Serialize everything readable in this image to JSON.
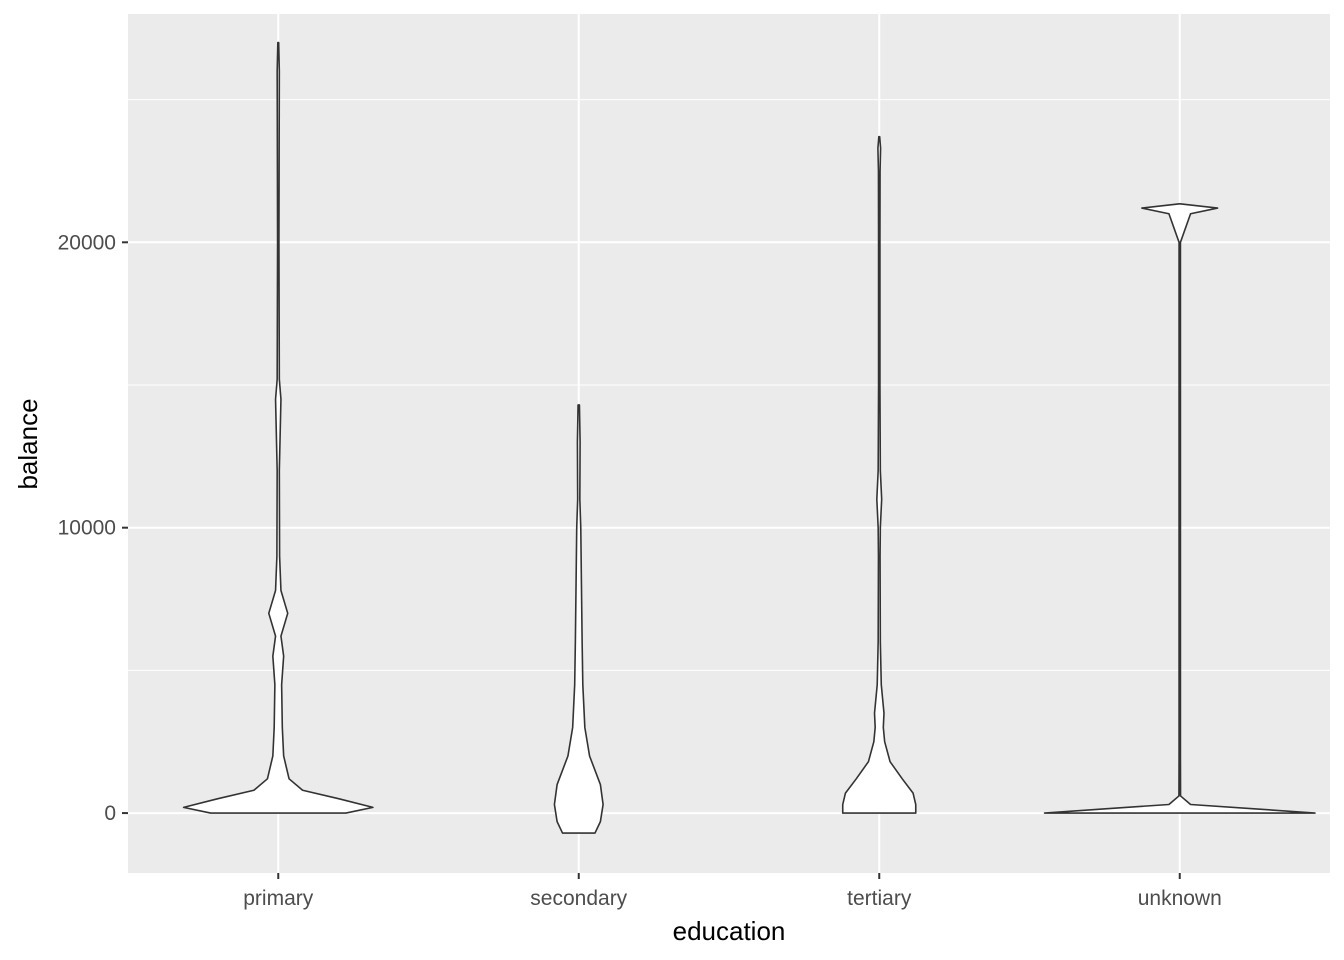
{
  "chart_data": {
    "type": "violin",
    "xlabel": "education",
    "ylabel": "balance",
    "categories": [
      "primary",
      "secondary",
      "tertiary",
      "unknown"
    ],
    "ylim": [
      -2100,
      28000
    ],
    "y_ticks": [
      0,
      10000,
      20000
    ],
    "y_tick_labels": [
      "0",
      "10000",
      "20000"
    ],
    "grid": true,
    "colors": {
      "panel": "#ebebeb",
      "grid": "#ffffff",
      "violin_fill": "#ffffff",
      "violin_stroke": "#333333"
    },
    "violins": [
      {
        "category": "primary",
        "profile": [
          [
            0,
            0.5
          ],
          [
            200,
            0.7
          ],
          [
            500,
            0.45
          ],
          [
            800,
            0.18
          ],
          [
            1200,
            0.08
          ],
          [
            2000,
            0.04
          ],
          [
            3000,
            0.03
          ],
          [
            4500,
            0.025
          ],
          [
            5500,
            0.04
          ],
          [
            6200,
            0.02
          ],
          [
            7000,
            0.07
          ],
          [
            7800,
            0.02
          ],
          [
            9000,
            0.01
          ],
          [
            12000,
            0.008
          ],
          [
            14500,
            0.02
          ],
          [
            15200,
            0.008
          ],
          [
            20000,
            0.005
          ],
          [
            26000,
            0.008
          ],
          [
            27000,
            0.003
          ]
        ]
      },
      {
        "category": "secondary",
        "profile": [
          [
            -700,
            0.12
          ],
          [
            -300,
            0.16
          ],
          [
            300,
            0.18
          ],
          [
            1000,
            0.16
          ],
          [
            2000,
            0.08
          ],
          [
            3000,
            0.045
          ],
          [
            4500,
            0.03
          ],
          [
            6000,
            0.025
          ],
          [
            8000,
            0.02
          ],
          [
            10000,
            0.015
          ],
          [
            11000,
            0.008
          ],
          [
            13000,
            0.01
          ],
          [
            14300,
            0.005
          ]
        ]
      },
      {
        "category": "tertiary",
        "profile": [
          [
            0,
            0.27
          ],
          [
            300,
            0.27
          ],
          [
            700,
            0.25
          ],
          [
            1200,
            0.17
          ],
          [
            1800,
            0.08
          ],
          [
            2500,
            0.04
          ],
          [
            3000,
            0.03
          ],
          [
            3500,
            0.035
          ],
          [
            4500,
            0.015
          ],
          [
            6000,
            0.008
          ],
          [
            9000,
            0.006
          ],
          [
            10000,
            0.008
          ],
          [
            11000,
            0.018
          ],
          [
            12000,
            0.008
          ],
          [
            15000,
            0.005
          ],
          [
            20000,
            0.005
          ],
          [
            22500,
            0.006
          ],
          [
            23300,
            0.01
          ],
          [
            23700,
            0.003
          ]
        ]
      },
      {
        "category": "unknown",
        "profile": [
          [
            0,
            1
          ],
          [
            150,
            0.55
          ],
          [
            300,
            0.08
          ],
          [
            600,
            0.006
          ],
          [
            2000,
            0.005
          ],
          [
            10000,
            0.005
          ],
          [
            20000,
            0.005
          ],
          [
            21000,
            0.08
          ],
          [
            21200,
            0.28
          ],
          [
            21350,
            0.001
          ]
        ]
      }
    ]
  }
}
